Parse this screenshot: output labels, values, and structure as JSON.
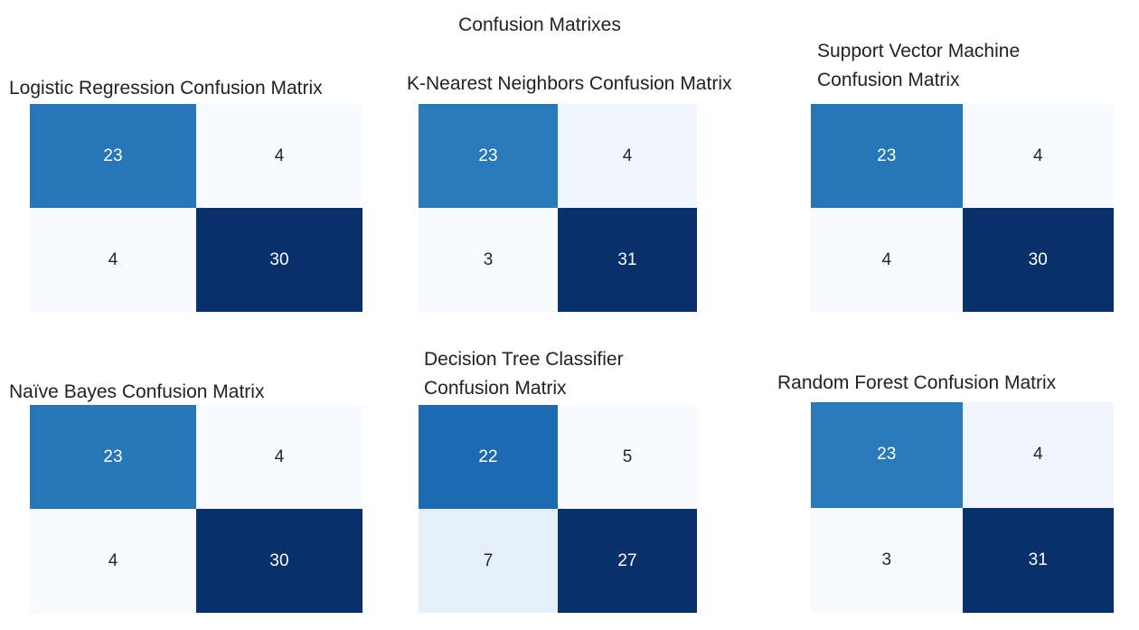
{
  "title": "Confusion Matrixes",
  "chart_data": [
    {
      "type": "heatmap",
      "title": "Logistic Regression Confusion Matrix",
      "colormap": "Blues",
      "values": [
        [
          23,
          4
        ],
        [
          4,
          30
        ]
      ]
    },
    {
      "type": "heatmap",
      "title": "K-Nearest Neighbors Confusion Matrix",
      "colormap": "Blues",
      "values": [
        [
          23,
          4
        ],
        [
          3,
          31
        ]
      ]
    },
    {
      "type": "heatmap",
      "title": "Support Vector Machine Confusion Matrix",
      "colormap": "Blues",
      "values": [
        [
          23,
          4
        ],
        [
          4,
          30
        ]
      ]
    },
    {
      "type": "heatmap",
      "title": "Naïve Bayes Confusion Matrix",
      "colormap": "Blues",
      "values": [
        [
          23,
          4
        ],
        [
          4,
          30
        ]
      ]
    },
    {
      "type": "heatmap",
      "title": "Decision Tree Classifier Confusion Matrix",
      "colormap": "Blues",
      "values": [
        [
          22,
          5
        ],
        [
          7,
          27
        ]
      ]
    },
    {
      "type": "heatmap",
      "title": "Random Forest Confusion Matrix",
      "colormap": "Blues",
      "values": [
        [
          23,
          4
        ],
        [
          3,
          31
        ]
      ]
    }
  ]
}
